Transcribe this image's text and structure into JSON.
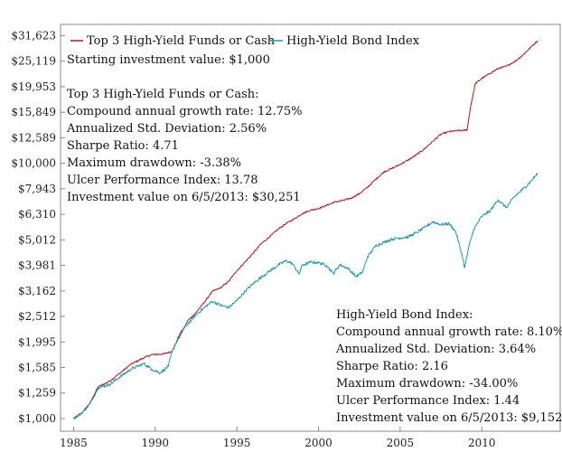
{
  "chart_data": {
    "type": "line",
    "title": "",
    "xlabel": "",
    "ylabel": "",
    "yscale": "log",
    "grid": false,
    "legend": "top-left",
    "xlim": [
      1984.2,
      2014.8
    ],
    "ylim": [
      892,
      35000
    ],
    "y_ticks": [
      1000,
      1259,
      1585,
      1995,
      2512,
      3162,
      3981,
      5012,
      6310,
      7943,
      10000,
      12589,
      15849,
      19953,
      25119,
      31623
    ],
    "y_tick_labels": [
      "$1,000",
      "$1,259",
      "$1,585",
      "$1,995",
      "$2,512",
      "$3,162",
      "$3,981",
      "$5,012",
      "$6,310",
      "$7,943",
      "$10,000",
      "$12,589",
      "$15,849",
      "$19,953",
      "$25,119",
      "$31,623"
    ],
    "x_ticks": [
      1985,
      1990,
      1995,
      2000,
      2005,
      2010
    ],
    "x_tick_labels": [
      "1985",
      "1990",
      "1995",
      "2000",
      "2005",
      "2010"
    ],
    "series": [
      {
        "name": "Top 3 High-Yield Funds or Cash",
        "color": "#c0101a",
        "x": [
          1985.0,
          1985.5,
          1986.0,
          1986.5,
          1987.2,
          1987.8,
          1988.5,
          1989.3,
          1989.8,
          1990.5,
          1991.0,
          1991.5,
          1992.0,
          1992.5,
          1993.0,
          1993.5,
          1994.0,
          1994.5,
          1995.0,
          1995.5,
          1996.0,
          1996.5,
          1997.0,
          1997.5,
          1998.0,
          1998.5,
          1999.0,
          1999.5,
          2000.0,
          2000.5,
          2001.0,
          2001.5,
          2002.0,
          2002.5,
          2003.0,
          2003.5,
          2004.0,
          2004.5,
          2005.0,
          2005.5,
          2006.0,
          2006.5,
          2007.0,
          2007.5,
          2008.0,
          2008.4,
          2008.8,
          2009.1,
          2009.3,
          2009.6,
          2010.0,
          2010.5,
          2011.0,
          2011.5,
          2012.0,
          2012.5,
          2013.0,
          2013.43
        ],
        "y": [
          1000,
          1050,
          1150,
          1330,
          1400,
          1500,
          1630,
          1730,
          1780,
          1790,
          1830,
          2100,
          2420,
          2600,
          2850,
          3150,
          3250,
          3450,
          3800,
          4100,
          4450,
          4850,
          5150,
          5500,
          5800,
          6050,
          6350,
          6550,
          6650,
          6850,
          7050,
          7150,
          7300,
          7600,
          8050,
          8650,
          9250,
          9550,
          9900,
          10300,
          10800,
          11400,
          12200,
          13000,
          13300,
          13400,
          13450,
          13500,
          16500,
          20500,
          21500,
          22500,
          23500,
          24000,
          25000,
          26500,
          28500,
          30251
        ]
      },
      {
        "name": "High-Yield Bond Index",
        "color": "#1a98b4",
        "x": [
          1985.0,
          1985.5,
          1986.0,
          1986.5,
          1987.2,
          1987.8,
          1988.5,
          1989.3,
          1989.8,
          1990.3,
          1990.8,
          1991.0,
          1991.5,
          1992.0,
          1992.5,
          1993.0,
          1993.5,
          1994.0,
          1994.5,
          1995.0,
          1995.5,
          1996.0,
          1996.5,
          1997.0,
          1997.5,
          1998.0,
          1998.4,
          1998.8,
          1999.0,
          1999.5,
          2000.0,
          2000.5,
          2000.9,
          2001.3,
          2001.8,
          2002.3,
          2002.7,
          2003.0,
          2003.5,
          2004.0,
          2004.5,
          2005.0,
          2005.5,
          2006.0,
          2006.5,
          2007.0,
          2007.5,
          2008.0,
          2008.4,
          2008.8,
          2008.95,
          2009.2,
          2009.5,
          2010.0,
          2010.5,
          2011.0,
          2011.5,
          2012.0,
          2012.5,
          2013.0,
          2013.43
        ],
        "y": [
          1000,
          1050,
          1140,
          1320,
          1360,
          1450,
          1560,
          1640,
          1560,
          1510,
          1600,
          1800,
          2150,
          2350,
          2550,
          2720,
          2880,
          2780,
          2720,
          2900,
          3150,
          3380,
          3580,
          3780,
          3980,
          4150,
          4050,
          3680,
          3980,
          4100,
          4080,
          3980,
          3700,
          4000,
          3880,
          3600,
          3750,
          4300,
          4750,
          4900,
          5050,
          5100,
          5150,
          5350,
          5600,
          5900,
          5750,
          5800,
          5400,
          4350,
          3900,
          4700,
          5500,
          6200,
          6500,
          7200,
          6700,
          7400,
          7900,
          8500,
          9152
        ]
      }
    ],
    "annotations": {
      "starting_value": "Starting investment value: $1,000",
      "top3": {
        "heading": "Top 3 High-Yield Funds or Cash:",
        "cagr": "Compound annual growth rate: 12.75%",
        "stddev": "Annualized Std. Deviation: 2.56%",
        "sharpe": "Sharpe Ratio: 4.71",
        "drawdown": "Maximum drawdown: -3.38%",
        "ulcer": "Ulcer Performance Index: 13.78",
        "final": "Investment value on 6/5/2013: $30,251"
      },
      "index": {
        "heading": "High-Yield Bond Index:",
        "cagr": "Compound annual growth rate: 8.10%",
        "stddev": "Annualized Std. Deviation: 3.64%",
        "sharpe": "Sharpe Ratio: 2.16",
        "drawdown": "Maximum drawdown: -34.00%",
        "ulcer": "Ulcer Performance Index: 1.44",
        "final": "Investment value on 6/5/2013: $9,152"
      }
    }
  }
}
